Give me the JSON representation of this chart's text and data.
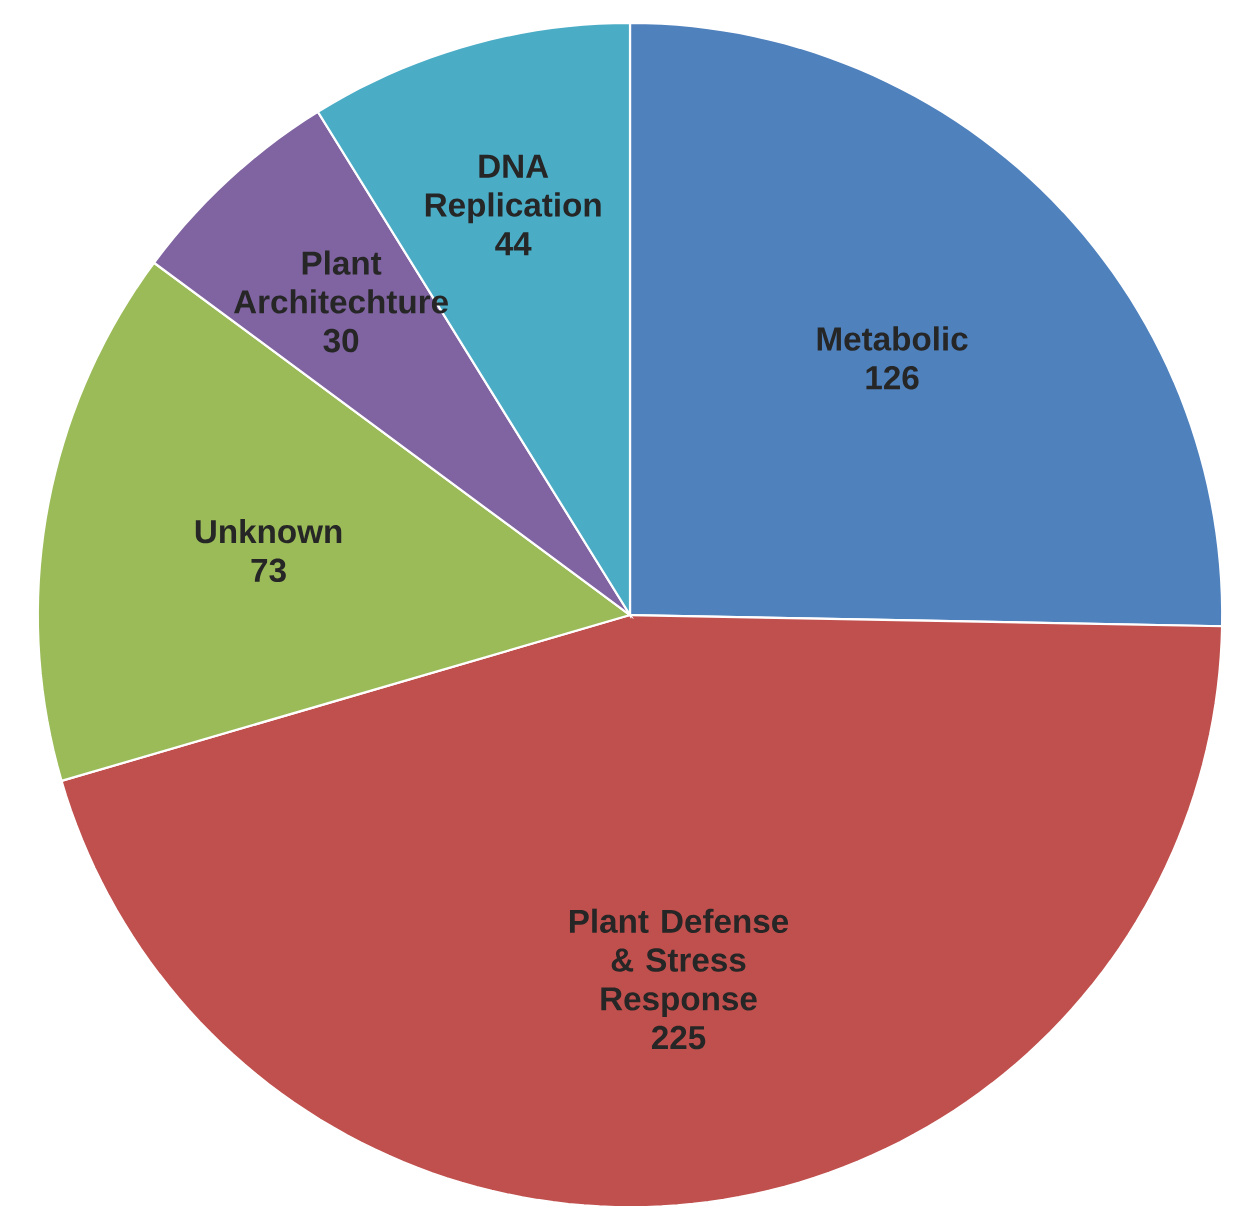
{
  "chart_data": {
    "type": "pie",
    "categories": [
      "Metabolic",
      "Plant Defense & Stress Response",
      "Unknown",
      "Plant Architechture",
      "DNA Replication"
    ],
    "values": [
      126,
      225,
      73,
      30,
      44
    ],
    "value_labels": [
      "126",
      "225",
      "73",
      "30",
      "44"
    ],
    "colors": [
      "#4f81bd",
      "#c0504d",
      "#9bbb59",
      "#8064a2",
      "#4bacc6"
    ]
  }
}
